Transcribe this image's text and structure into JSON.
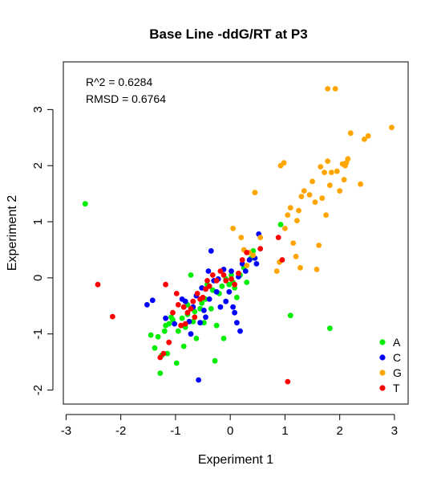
{
  "chart_data": {
    "type": "scatter",
    "title": "Base Line -ddG/RT at P3",
    "xlabel": "Experiment 1",
    "ylabel": "Experiment 2",
    "xlim": [
      -3.05,
      3.25
    ],
    "ylim": [
      -2.25,
      3.85
    ],
    "xticks": [
      -3,
      -2,
      -1,
      0,
      1,
      2,
      3
    ],
    "yticks": [
      -2,
      -1,
      0,
      1,
      2,
      3
    ],
    "grid": false,
    "legend_position": "bottom-right",
    "annotations": [
      "R^2 = 0.6284",
      "RMSD = 0.6764"
    ],
    "series": [
      {
        "name": "A",
        "color": "#00ee00",
        "points": [
          [
            -2.65,
            1.32
          ],
          [
            -1.45,
            -1.02
          ],
          [
            -1.38,
            -1.25
          ],
          [
            -1.32,
            -1.05
          ],
          [
            -1.28,
            -1.7
          ],
          [
            -1.25,
            -1.38
          ],
          [
            -1.2,
            -0.95
          ],
          [
            -1.18,
            -0.85
          ],
          [
            -1.15,
            -1.35
          ],
          [
            -1.12,
            -0.82
          ],
          [
            -1.08,
            -0.7
          ],
          [
            -1.05,
            -0.75
          ],
          [
            -0.98,
            -1.52
          ],
          [
            -0.95,
            -0.95
          ],
          [
            -0.88,
            -0.72
          ],
          [
            -0.85,
            -1.22
          ],
          [
            -0.82,
            -0.88
          ],
          [
            -0.78,
            -0.65
          ],
          [
            -0.72,
            0.05
          ],
          [
            -0.68,
            -0.78
          ],
          [
            -0.65,
            -0.6
          ],
          [
            -0.62,
            -1.08
          ],
          [
            -0.55,
            -0.55
          ],
          [
            -0.52,
            -0.45
          ],
          [
            -0.48,
            -0.8
          ],
          [
            -0.45,
            -0.38
          ],
          [
            -0.42,
            -0.12
          ],
          [
            -0.35,
            -0.55
          ],
          [
            -0.28,
            -1.48
          ],
          [
            -0.25,
            -0.85
          ],
          [
            -0.2,
            -0.28
          ],
          [
            -0.15,
            -0.15
          ],
          [
            -0.12,
            -1.08
          ],
          [
            -0.08,
            -0.02
          ],
          [
            -0.02,
            -0.12
          ],
          [
            0.02,
            0.05
          ],
          [
            0.05,
            -0.08
          ],
          [
            0.08,
            -0.18
          ],
          [
            0.12,
            -0.35
          ],
          [
            0.18,
            0.05
          ],
          [
            0.25,
            0.18
          ],
          [
            0.3,
            -0.08
          ],
          [
            0.38,
            0.35
          ],
          [
            0.42,
            0.48
          ],
          [
            0.92,
            0.95
          ],
          [
            1.1,
            -0.67
          ],
          [
            1.82,
            -0.9
          ],
          [
            -0.78,
            -0.48
          ],
          [
            -0.32,
            -0.22
          ]
        ]
      },
      {
        "name": "C",
        "color": "#0000ff",
        "points": [
          [
            -1.52,
            -0.48
          ],
          [
            -1.42,
            -0.4
          ],
          [
            -1.18,
            -0.72
          ],
          [
            -1.02,
            -0.82
          ],
          [
            -0.88,
            -0.38
          ],
          [
            -0.75,
            -0.78
          ],
          [
            -0.72,
            -1.0
          ],
          [
            -0.68,
            -0.52
          ],
          [
            -0.62,
            -0.32
          ],
          [
            -0.58,
            -1.82
          ],
          [
            -0.55,
            -0.8
          ],
          [
            -0.52,
            -0.18
          ],
          [
            -0.48,
            -0.58
          ],
          [
            -0.45,
            -0.7
          ],
          [
            -0.38,
            -0.38
          ],
          [
            -0.35,
            0.48
          ],
          [
            -0.3,
            -0.05
          ],
          [
            -0.25,
            -0.25
          ],
          [
            -0.22,
            -0.02
          ],
          [
            -0.18,
            -0.52
          ],
          [
            -0.12,
            0.15
          ],
          [
            -0.08,
            -0.42
          ],
          [
            -0.02,
            -0.25
          ],
          [
            0.02,
            0.12
          ],
          [
            0.05,
            -0.52
          ],
          [
            0.08,
            -0.62
          ],
          [
            0.12,
            -0.8
          ],
          [
            0.15,
            0.02
          ],
          [
            0.18,
            -0.95
          ],
          [
            0.22,
            0.25
          ],
          [
            0.28,
            0.12
          ],
          [
            0.35,
            0.32
          ],
          [
            0.45,
            0.35
          ],
          [
            0.52,
            0.78
          ],
          [
            0.48,
            0.25
          ],
          [
            -0.82,
            -0.42
          ],
          [
            -0.4,
            0.12
          ]
        ]
      },
      {
        "name": "G",
        "color": "#ffa500",
        "points": [
          [
            0.05,
            0.88
          ],
          [
            0.2,
            0.72
          ],
          [
            0.25,
            0.5
          ],
          [
            0.3,
            0.22
          ],
          [
            0.35,
            0.45
          ],
          [
            0.42,
            0.4
          ],
          [
            0.45,
            1.52
          ],
          [
            0.55,
            0.72
          ],
          [
            0.85,
            0.12
          ],
          [
            0.9,
            0.28
          ],
          [
            0.92,
            2.0
          ],
          [
            0.98,
            2.05
          ],
          [
            1.0,
            0.88
          ],
          [
            1.05,
            1.12
          ],
          [
            1.1,
            1.25
          ],
          [
            1.15,
            0.62
          ],
          [
            1.2,
            0.38
          ],
          [
            1.22,
            1.02
          ],
          [
            1.25,
            1.2
          ],
          [
            1.28,
            0.18
          ],
          [
            1.3,
            1.45
          ],
          [
            1.35,
            1.55
          ],
          [
            1.45,
            1.48
          ],
          [
            1.5,
            1.72
          ],
          [
            1.55,
            1.35
          ],
          [
            1.58,
            0.15
          ],
          [
            1.62,
            0.58
          ],
          [
            1.65,
            1.98
          ],
          [
            1.68,
            1.42
          ],
          [
            1.72,
            1.88
          ],
          [
            1.75,
            1.12
          ],
          [
            1.78,
            2.08
          ],
          [
            1.82,
            1.65
          ],
          [
            1.85,
            1.88
          ],
          [
            1.92,
            3.37
          ],
          [
            1.95,
            1.9
          ],
          [
            2.0,
            1.55
          ],
          [
            2.05,
            2.03
          ],
          [
            2.08,
            1.75
          ],
          [
            2.1,
            2.0
          ],
          [
            2.12,
            2.05
          ],
          [
            2.15,
            2.12
          ],
          [
            2.2,
            2.58
          ],
          [
            2.38,
            1.67
          ],
          [
            2.45,
            2.47
          ],
          [
            2.52,
            2.53
          ],
          [
            2.95,
            2.68
          ],
          [
            1.78,
            3.37
          ]
        ]
      },
      {
        "name": "T",
        "color": "#ff0000",
        "points": [
          [
            -2.42,
            -0.12
          ],
          [
            -2.15,
            -0.69
          ],
          [
            -1.28,
            -1.42
          ],
          [
            -1.22,
            -1.35
          ],
          [
            -1.18,
            -0.12
          ],
          [
            -1.12,
            -1.15
          ],
          [
            -1.05,
            -0.62
          ],
          [
            -0.95,
            -0.48
          ],
          [
            -0.9,
            -0.85
          ],
          [
            -0.85,
            -0.52
          ],
          [
            -0.82,
            -0.82
          ],
          [
            -0.78,
            -0.62
          ],
          [
            -0.72,
            -0.55
          ],
          [
            -0.68,
            -0.42
          ],
          [
            -0.65,
            -0.7
          ],
          [
            -0.6,
            -0.28
          ],
          [
            -0.55,
            -0.38
          ],
          [
            -0.5,
            -0.35
          ],
          [
            -0.45,
            -0.2
          ],
          [
            -0.38,
            -0.15
          ],
          [
            -0.32,
            0.05
          ],
          [
            -0.25,
            -0.05
          ],
          [
            -0.18,
            0.12
          ],
          [
            -0.12,
            0.05
          ],
          [
            -0.08,
            -0.05
          ],
          [
            0.02,
            -0.02
          ],
          [
            0.08,
            -0.12
          ],
          [
            0.15,
            0.08
          ],
          [
            0.22,
            0.32
          ],
          [
            0.3,
            0.45
          ],
          [
            0.55,
            0.52
          ],
          [
            0.88,
            0.72
          ],
          [
            0.95,
            0.32
          ],
          [
            1.05,
            -1.85
          ],
          [
            -0.98,
            -0.28
          ],
          [
            -0.42,
            -0.05
          ]
        ]
      }
    ]
  }
}
